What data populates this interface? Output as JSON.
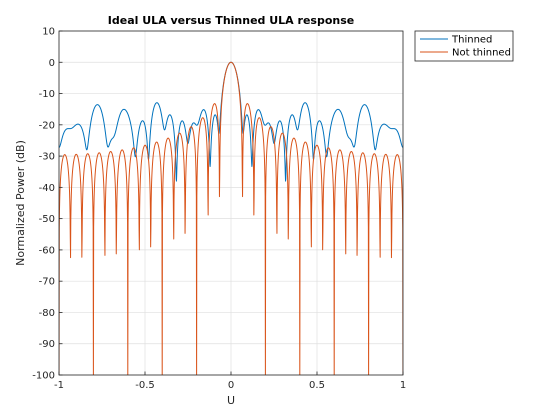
{
  "chart_data": {
    "type": "line",
    "title": "Ideal ULA versus Thinned ULA response",
    "xlabel": "U",
    "ylabel": "Normalized Power (dB)",
    "xlim": [
      -1,
      1
    ],
    "ylim": [
      -100,
      10
    ],
    "x_ticks": [
      -1,
      -0.5,
      0,
      0.5,
      1
    ],
    "x_tick_labels": [
      "-1",
      "-0.5",
      "0",
      "0.5",
      "1"
    ],
    "y_ticks": [
      10,
      0,
      -10,
      -20,
      -30,
      -40,
      -50,
      -60,
      -70,
      -80,
      -90,
      -100
    ],
    "y_tick_labels": [
      "10",
      "0",
      "-10",
      "-20",
      "-30",
      "-40",
      "-50",
      "-60",
      "-70",
      "-80",
      "-90",
      "-100"
    ],
    "grid": true,
    "legend_position": "outside top-right",
    "series": [
      {
        "name": "Thinned",
        "color": "#0072BD",
        "elements": 23,
        "aperture": 30,
        "seed": 11
      },
      {
        "name": "Not thinned",
        "color": "#D95319",
        "elements": 30,
        "aperture": 30,
        "seed": 0
      }
    ]
  }
}
